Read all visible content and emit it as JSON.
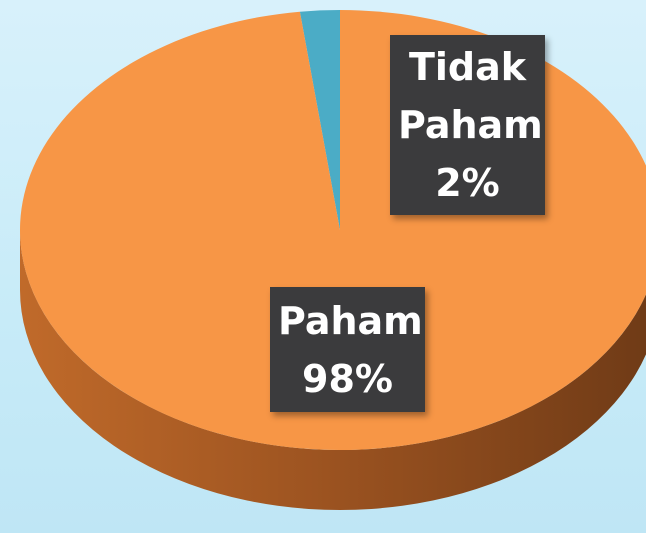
{
  "chart_data": {
    "type": "pie",
    "categories": [
      "Tidak Paham",
      "Paham"
    ],
    "values": [
      2,
      98
    ],
    "value_labels": [
      "2%",
      "98%"
    ],
    "colors": [
      "#4bacc6",
      "#f79646"
    ]
  }
}
